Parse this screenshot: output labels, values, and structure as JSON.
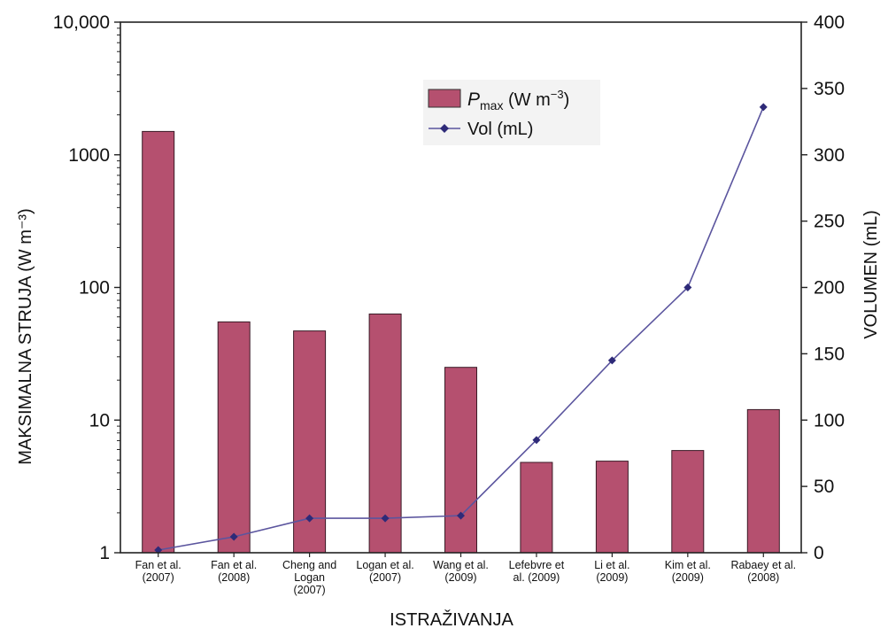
{
  "chart_data": {
    "type": "bar",
    "title": "",
    "xlabel": "ISTRAŽIVANJA",
    "ylabel_left": "MAKSIMALNA STRUJA (W m⁻³)",
    "ylabel_right": "VOLUMEN (mL)",
    "categories": [
      [
        "Fan et al.",
        "(2007)"
      ],
      [
        "Fan et al.",
        "(2008)"
      ],
      [
        "Cheng and",
        "Logan",
        "(2007)"
      ],
      [
        "Logan et al.",
        "(2007)"
      ],
      [
        "Wang et al.",
        "(2009)"
      ],
      [
        "Lefebvre et",
        "al. (2009)"
      ],
      [
        "Li et al.",
        "(2009)"
      ],
      [
        "Kim et al.",
        "(2009)"
      ],
      [
        "Rabaey et al.",
        "(2008)"
      ]
    ],
    "left_axis": {
      "scale": "log",
      "ylim": [
        1,
        10000
      ],
      "ticks": [
        1,
        10,
        100,
        1000,
        10000
      ],
      "tick_labels": [
        "1",
        "10",
        "100",
        "1000",
        "10,000"
      ]
    },
    "right_axis": {
      "scale": "linear",
      "ylim": [
        0,
        400
      ],
      "ticks": [
        0,
        50,
        100,
        150,
        200,
        250,
        300,
        350,
        400
      ],
      "tick_labels": [
        "0",
        "50",
        "100",
        "150",
        "200",
        "250",
        "300",
        "350",
        "400"
      ]
    },
    "series": [
      {
        "name": "P",
        "name_sub": "max",
        "name_unit": " (W m",
        "name_sup": "−3",
        "name_close": ")",
        "kind": "bar",
        "axis": "left",
        "color": "#b5506f",
        "values": [
          1500,
          55,
          47,
          63,
          25,
          4.8,
          4.9,
          5.9,
          12
        ]
      },
      {
        "name": "Vol (mL)",
        "kind": "line",
        "axis": "right",
        "color": "#5b559e",
        "marker_color": "#2e2a78",
        "values": [
          2,
          12,
          26,
          26,
          28,
          85,
          145,
          200,
          336
        ]
      }
    ],
    "grid": false,
    "legend": "top-center"
  }
}
